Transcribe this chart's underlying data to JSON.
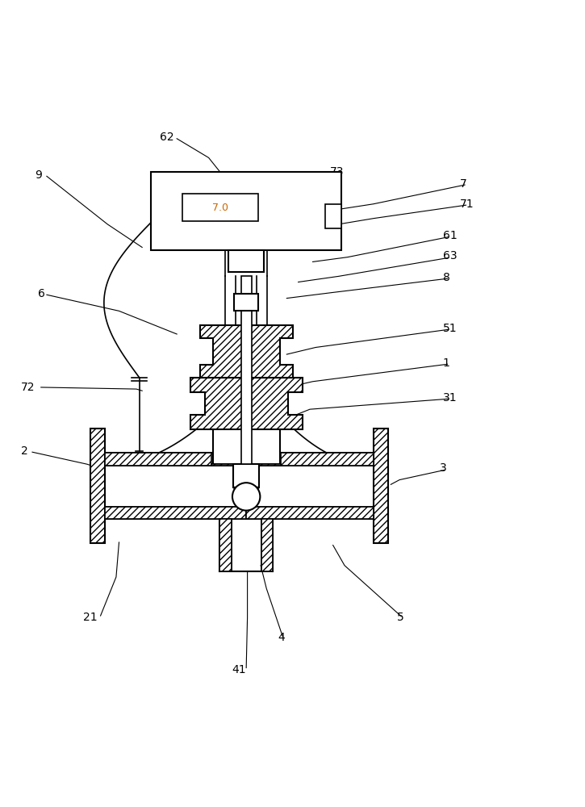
{
  "bg_color": "#ffffff",
  "line_color": "#000000",
  "display_text": "7.0",
  "display_color": "#cc6600",
  "figsize": [
    7.25,
    10.0
  ],
  "dpi": 100
}
